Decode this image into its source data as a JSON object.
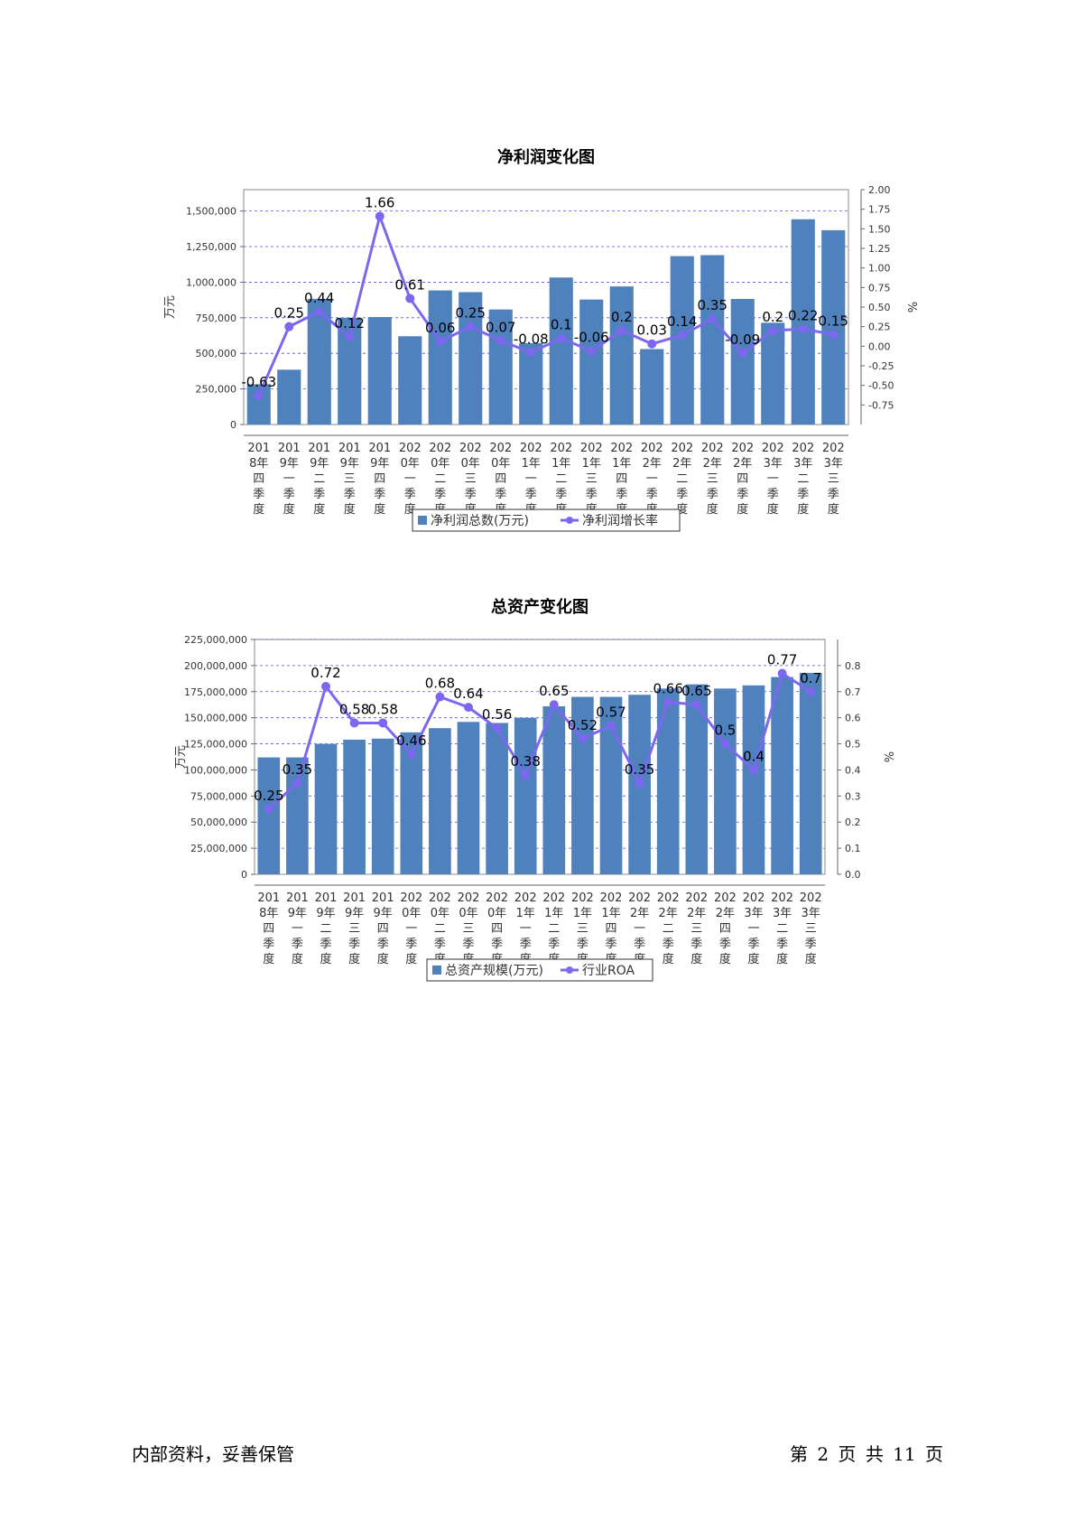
{
  "chart_data": [
    {
      "type": "bar",
      "title": "净利润变化图",
      "ylabel": "万元",
      "y2label": "%",
      "ylim": [
        0,
        1650000
      ],
      "y2lim": [
        -1.0,
        2.0
      ],
      "yticks": [
        "0",
        "250,000",
        "500,000",
        "750,000",
        "1,000,000",
        "1,250,000",
        "1,500,000"
      ],
      "yticks_values": [
        0,
        250000,
        500000,
        750000,
        1000000,
        1250000,
        1500000
      ],
      "y2ticks": [
        "-0.75",
        "-0.50",
        "-0.25",
        "0.00",
        "0.25",
        "0.50",
        "0.75",
        "1.00",
        "1.25",
        "1.50",
        "1.75",
        "2.00"
      ],
      "y2ticks_values": [
        -0.75,
        -0.5,
        -0.25,
        0,
        0.25,
        0.5,
        0.75,
        1.0,
        1.25,
        1.5,
        1.75,
        2.0
      ],
      "grid": true,
      "legend_position": "bottom",
      "categories": [
        [
          "201",
          "8年",
          "四",
          "季",
          "度"
        ],
        [
          "201",
          "9年",
          "一",
          "季",
          "度"
        ],
        [
          "201",
          "9年",
          "二",
          "季",
          "度"
        ],
        [
          "201",
          "9年",
          "三",
          "季",
          "度"
        ],
        [
          "201",
          "9年",
          "四",
          "季",
          "度"
        ],
        [
          "202",
          "0年",
          "一",
          "季",
          "度"
        ],
        [
          "202",
          "0年",
          "二",
          "季",
          "度"
        ],
        [
          "202",
          "0年",
          "三",
          "季",
          "度"
        ],
        [
          "202",
          "0年",
          "四",
          "季",
          "度"
        ],
        [
          "202",
          "1年",
          "一",
          "季",
          "度"
        ],
        [
          "202",
          "1年",
          "二",
          "季",
          "度"
        ],
        [
          "202",
          "1年",
          "三",
          "季",
          "度"
        ],
        [
          "202",
          "1年",
          "四",
          "季",
          "度"
        ],
        [
          "202",
          "2年",
          "一",
          "季",
          "度"
        ],
        [
          "202",
          "2年",
          "二",
          "季",
          "度"
        ],
        [
          "202",
          "2年",
          "三",
          "季",
          "度"
        ],
        [
          "202",
          "2年",
          "四",
          "季",
          "度"
        ],
        [
          "202",
          "3年",
          "一",
          "季",
          "度"
        ],
        [
          "202",
          "3年",
          "二",
          "季",
          "度"
        ],
        [
          "202",
          "3年",
          "三",
          "季",
          "度"
        ]
      ],
      "series": [
        {
          "name": "净利润总数(万元)",
          "type": "bar",
          "color": "#4f81bd",
          "values": [
            283000,
            385000,
            883000,
            750000,
            755000,
            620000,
            942000,
            930000,
            808000,
            572000,
            1033000,
            878000,
            970000,
            530000,
            1183000,
            1190000,
            882000,
            715000,
            1442000,
            1365000
          ]
        },
        {
          "name": "净利润增长率",
          "type": "line",
          "axis": "right",
          "color": "#7b68ee",
          "values": [
            -0.63,
            0.25,
            0.44,
            0.12,
            1.66,
            0.61,
            0.06,
            0.25,
            0.07,
            -0.08,
            0.1,
            -0.06,
            0.2,
            0.03,
            0.14,
            0.35,
            -0.09,
            0.2,
            0.22,
            0.15
          ],
          "labels": [
            "-0.63",
            "0.25",
            "0.44",
            "0.12",
            "1.66",
            "0.61",
            "0.06",
            "0.25",
            "0.07",
            "-0.08",
            "0.1",
            "-0.06",
            "0.2",
            "0.03",
            "0.14",
            "0.35",
            "-0.09",
            "0.2",
            "0.22",
            "0.15"
          ]
        }
      ]
    },
    {
      "type": "bar",
      "title": "总资产变化图",
      "ylabel": "万元",
      "y2label": "%",
      "ylim": [
        0,
        225000000
      ],
      "y2lim": [
        0,
        0.9
      ],
      "yticks": [
        "0",
        "25,000,000",
        "50,000,000",
        "75,000,000",
        "100,000,000",
        "125,000,000",
        "150,000,000",
        "175,000,000",
        "200,000,000",
        "225,000,000"
      ],
      "yticks_values": [
        0,
        25000000,
        50000000,
        75000000,
        100000000,
        125000000,
        150000000,
        175000000,
        200000000,
        225000000
      ],
      "y2ticks": [
        "0.0",
        "0.1",
        "0.2",
        "0.3",
        "0.4",
        "0.5",
        "0.6",
        "0.7",
        "0.8"
      ],
      "y2ticks_values": [
        0,
        0.1,
        0.2,
        0.3,
        0.4,
        0.5,
        0.6,
        0.7,
        0.8
      ],
      "grid": true,
      "legend_position": "bottom",
      "categories": [
        [
          "201",
          "8年",
          "四",
          "季",
          "度"
        ],
        [
          "201",
          "9年",
          "一",
          "季",
          "度"
        ],
        [
          "201",
          "9年",
          "二",
          "季",
          "度"
        ],
        [
          "201",
          "9年",
          "三",
          "季",
          "度"
        ],
        [
          "201",
          "9年",
          "四",
          "季",
          "度"
        ],
        [
          "202",
          "0年",
          "一",
          "季",
          "度"
        ],
        [
          "202",
          "0年",
          "二",
          "季",
          "度"
        ],
        [
          "202",
          "0年",
          "三",
          "季",
          "度"
        ],
        [
          "202",
          "0年",
          "四",
          "季",
          "度"
        ],
        [
          "202",
          "1年",
          "一",
          "季",
          "度"
        ],
        [
          "202",
          "1年",
          "二",
          "季",
          "度"
        ],
        [
          "202",
          "1年",
          "三",
          "季",
          "度"
        ],
        [
          "202",
          "1年",
          "四",
          "季",
          "度"
        ],
        [
          "202",
          "2年",
          "一",
          "季",
          "度"
        ],
        [
          "202",
          "2年",
          "二",
          "季",
          "度"
        ],
        [
          "202",
          "2年",
          "三",
          "季",
          "度"
        ],
        [
          "202",
          "2年",
          "四",
          "季",
          "度"
        ],
        [
          "202",
          "3年",
          "一",
          "季",
          "度"
        ],
        [
          "202",
          "3年",
          "二",
          "季",
          "度"
        ],
        [
          "202",
          "3年",
          "三",
          "季",
          "度"
        ]
      ],
      "series": [
        {
          "name": "总资产规模(万元)",
          "type": "bar",
          "color": "#4f81bd",
          "values": [
            112000000,
            112000000,
            125000000,
            129000000,
            130000000,
            136000000,
            140000000,
            146000000,
            145000000,
            150000000,
            161000000,
            170000000,
            170000000,
            172000000,
            178000000,
            182000000,
            178000000,
            181000000,
            189000000,
            193000000
          ]
        },
        {
          "name": "行业ROA",
          "type": "line",
          "axis": "right",
          "color": "#7b68ee",
          "values": [
            0.25,
            0.35,
            0.72,
            0.58,
            0.58,
            0.46,
            0.68,
            0.64,
            0.56,
            0.38,
            0.65,
            0.52,
            0.57,
            0.35,
            0.66,
            0.65,
            0.5,
            0.4,
            0.77,
            0.7
          ],
          "labels": [
            "0.25",
            "0.35",
            "0.72",
            "0.58",
            "0.58",
            "0.46",
            "0.68",
            "0.64",
            "0.56",
            "0.38",
            "0.65",
            "0.52",
            "0.57",
            "0.35",
            "0.66",
            "0.65",
            "0.5",
            "0.4",
            "0.77",
            "0.7"
          ]
        }
      ]
    }
  ],
  "footer": {
    "left": "内部资料，妥善保管",
    "right": "第 2 页   共 11 页"
  }
}
